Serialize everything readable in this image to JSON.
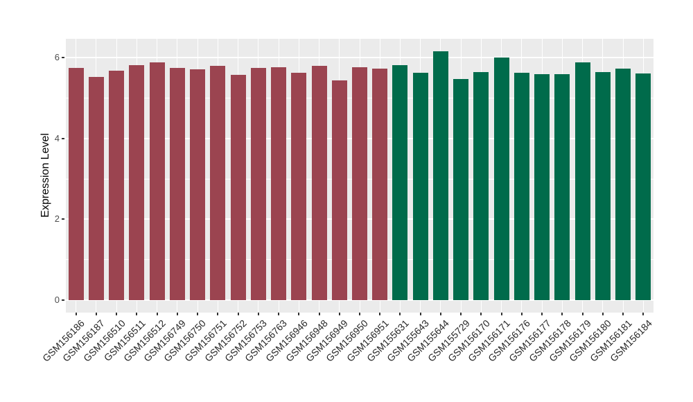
{
  "chart_data": {
    "type": "bar",
    "title": "",
    "xlabel": "",
    "ylabel": "Expression Level",
    "yticks": [
      0,
      2,
      4,
      6
    ],
    "yminorticks": [
      1,
      3,
      5
    ],
    "ylim": [
      -0.31,
      6.47
    ],
    "grid": true,
    "legend_position": "none",
    "panel_background": "#EBEBEB",
    "gridline_color": "#FFFFFF",
    "group_colors": {
      "group1": "#9B4450",
      "group2": "#006B4B"
    },
    "bars": [
      {
        "label": "GSM156186",
        "value": 5.75,
        "group": "group1"
      },
      {
        "label": "GSM156187",
        "value": 5.52,
        "group": "group1"
      },
      {
        "label": "GSM156510",
        "value": 5.68,
        "group": "group1"
      },
      {
        "label": "GSM156511",
        "value": 5.81,
        "group": "group1"
      },
      {
        "label": "GSM156512",
        "value": 5.89,
        "group": "group1"
      },
      {
        "label": "GSM156749",
        "value": 5.75,
        "group": "group1"
      },
      {
        "label": "GSM156750",
        "value": 5.71,
        "group": "group1"
      },
      {
        "label": "GSM156751",
        "value": 5.79,
        "group": "group1"
      },
      {
        "label": "GSM156752",
        "value": 5.57,
        "group": "group1"
      },
      {
        "label": "GSM156753",
        "value": 5.75,
        "group": "group1"
      },
      {
        "label": "GSM156763",
        "value": 5.76,
        "group": "group1"
      },
      {
        "label": "GSM156946",
        "value": 5.63,
        "group": "group1"
      },
      {
        "label": "GSM156948",
        "value": 5.8,
        "group": "group1"
      },
      {
        "label": "GSM156949",
        "value": 5.44,
        "group": "group1"
      },
      {
        "label": "GSM156950",
        "value": 5.76,
        "group": "group1"
      },
      {
        "label": "GSM156951",
        "value": 5.73,
        "group": "group1"
      },
      {
        "label": "GSM155631",
        "value": 5.82,
        "group": "group2"
      },
      {
        "label": "GSM155643",
        "value": 5.63,
        "group": "group2"
      },
      {
        "label": "GSM155644",
        "value": 6.15,
        "group": "group2"
      },
      {
        "label": "GSM155729",
        "value": 5.47,
        "group": "group2"
      },
      {
        "label": "GSM156170",
        "value": 5.65,
        "group": "group2"
      },
      {
        "label": "GSM156171",
        "value": 6.0,
        "group": "group2"
      },
      {
        "label": "GSM156176",
        "value": 5.63,
        "group": "group2"
      },
      {
        "label": "GSM156177",
        "value": 5.6,
        "group": "group2"
      },
      {
        "label": "GSM156178",
        "value": 5.6,
        "group": "group2"
      },
      {
        "label": "GSM156179",
        "value": 5.89,
        "group": "group2"
      },
      {
        "label": "GSM156180",
        "value": 5.64,
        "group": "group2"
      },
      {
        "label": "GSM156181",
        "value": 5.73,
        "group": "group2"
      },
      {
        "label": "GSM156184",
        "value": 5.61,
        "group": "group2"
      }
    ]
  }
}
